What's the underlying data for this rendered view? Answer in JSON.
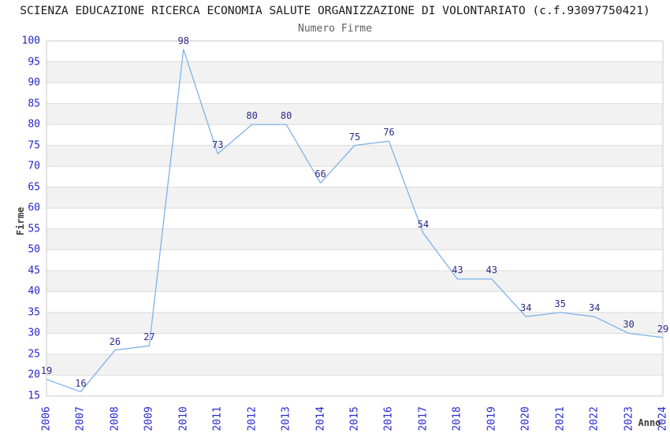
{
  "chart_data": {
    "type": "line",
    "title": "SCIENZA EDUCAZIONE RICERCA ECONOMIA SALUTE ORGANIZZAZIONE DI VOLONTARIATO (c.f.93097750421)",
    "subtitle": "Numero Firme",
    "xlabel": "Anno",
    "ylabel": "Firme",
    "categories": [
      "2006",
      "2007",
      "2008",
      "2009",
      "2010",
      "2011",
      "2012",
      "2013",
      "2014",
      "2015",
      "2016",
      "2017",
      "2018",
      "2019",
      "2020",
      "2021",
      "2022",
      "2023",
      "2024"
    ],
    "values": [
      19,
      16,
      26,
      27,
      98,
      73,
      80,
      80,
      66,
      75,
      76,
      54,
      43,
      43,
      34,
      35,
      34,
      30,
      29
    ],
    "ylim": [
      15,
      100
    ],
    "ytick_step": 5,
    "grid": "horizontal-gridlines-with-alternating-bands",
    "legend": "none",
    "data_labels_shown": true,
    "colors": {
      "line": "#7fb2e8",
      "data_label": "#2b2b85",
      "tick_label": "#2626cf",
      "band": "#f2f2f2",
      "gridline": "#dcdcdc",
      "plot_border": "#c9c9c9",
      "title": "#1a1a1a",
      "subtitle": "#5f5f5f",
      "axis_label": "#3c3c3c",
      "background": "#ffffff"
    }
  }
}
